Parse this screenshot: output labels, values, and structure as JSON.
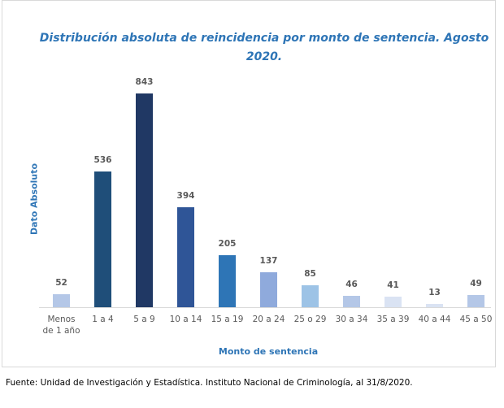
{
  "chart_data": {
    "type": "bar",
    "title": "Distribución absoluta de reincidencia por monto de sentencia. Agosto 2020.",
    "y_label": "Dato Absoluto",
    "x_label": "Monto de sentencia",
    "source": "Fuente: Unidad de Investigación y Estadística. Instituto Nacional de Criminología, al 31/8/2020.",
    "categories": [
      "Menos de 1 año",
      "1 a 4",
      "5 a 9",
      "10 a 14",
      "15 a 19",
      "20 a 24",
      "25 o 29",
      "30 a 34",
      "35 a 39",
      "40 a 44",
      "45 a 50"
    ],
    "values": [
      52,
      536,
      843,
      394,
      205,
      137,
      85,
      46,
      41,
      13,
      49
    ],
    "colors": [
      "#b4c7e7",
      "#1f4e79",
      "#203864",
      "#2f5597",
      "#2e75b6",
      "#8faadc",
      "#9dc3e6",
      "#b4c7e7",
      "#dae3f3",
      "#dae3f3",
      "#b4c7e7"
    ]
  }
}
